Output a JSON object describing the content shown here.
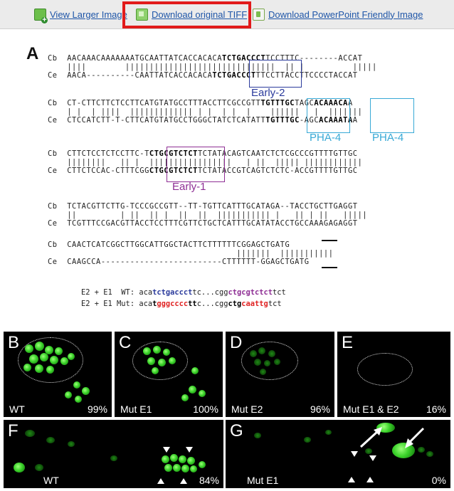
{
  "toolbar": {
    "view_larger": "View Larger Image",
    "download_tiff": "Download original TIFF",
    "download_ppt": "Download PowerPoint Friendly Image",
    "highlight_color": "#e11b1b",
    "link_color": "#1f56a8"
  },
  "figure": {
    "panel_a_letter": "A",
    "species_cb": "Cb",
    "species_ce": "Ce",
    "labels": {
      "early2": "Early-2",
      "pha4_a": "PHA-4",
      "pha4_b": "PHA-4",
      "early1": "Early-1"
    },
    "colors": {
      "early2": "#2b3b9c",
      "pha4": "#38a9d6",
      "early1": "#8e2e94",
      "mutant": "#e02323"
    },
    "legend": {
      "wt_prefix": "E2 + E1  WT:",
      "mut_prefix": "E2 + E1 Mut:"
    }
  },
  "panels": [
    {
      "letter": "B",
      "label": "WT",
      "percent": "99%"
    },
    {
      "letter": "C",
      "label": "Mut E1",
      "percent": "100%"
    },
    {
      "letter": "D",
      "label": "Mut E2",
      "percent": "96%"
    },
    {
      "letter": "E",
      "label": "Mut E1 & E2",
      "percent": "16%"
    },
    {
      "letter": "F",
      "label": "WT",
      "percent": "84%"
    },
    {
      "letter": "G",
      "label": "Mut E1",
      "percent": "0%"
    }
  ],
  "icons": [
    "view-larger-icon",
    "tiff-icon",
    "powerpoint-icon"
  ]
}
